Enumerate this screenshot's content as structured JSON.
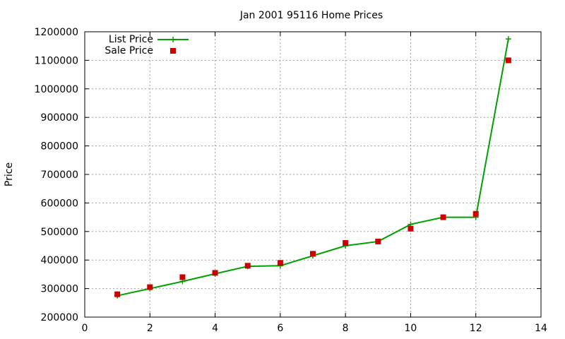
{
  "chart_data": {
    "type": "line",
    "title": "Jan 2001 95116 Home Prices",
    "xlabel": "",
    "ylabel": "Price",
    "xlim": [
      0,
      14
    ],
    "ylim": [
      200000,
      1200000
    ],
    "x_ticks": [
      "0",
      "2",
      "4",
      "6",
      "8",
      "10",
      "12",
      "14"
    ],
    "y_ticks": [
      "200000",
      "300000",
      "400000",
      "500000",
      "600000",
      "700000",
      "800000",
      "900000",
      "1000000",
      "1100000",
      "1200000"
    ],
    "grid": true,
    "legend_position": "top-left",
    "series": [
      {
        "name": "List Price",
        "style": "line-with-plus-markers",
        "color": "#00a000",
        "x": [
          1,
          2,
          3,
          4,
          5,
          6,
          7,
          8,
          9,
          10,
          11,
          12,
          13
        ],
        "values": [
          275000,
          300000,
          325000,
          352000,
          378000,
          380000,
          415000,
          450000,
          465000,
          525000,
          550000,
          550000,
          1175000
        ]
      },
      {
        "name": "Sale Price",
        "style": "square-markers",
        "color": "#cc0000",
        "x": [
          1,
          2,
          3,
          4,
          5,
          6,
          7,
          8,
          9,
          10,
          11,
          12,
          13
        ],
        "values": [
          280000,
          305000,
          340000,
          355000,
          380000,
          390000,
          422000,
          460000,
          465000,
          510000,
          550000,
          562000,
          1100000
        ]
      }
    ]
  }
}
